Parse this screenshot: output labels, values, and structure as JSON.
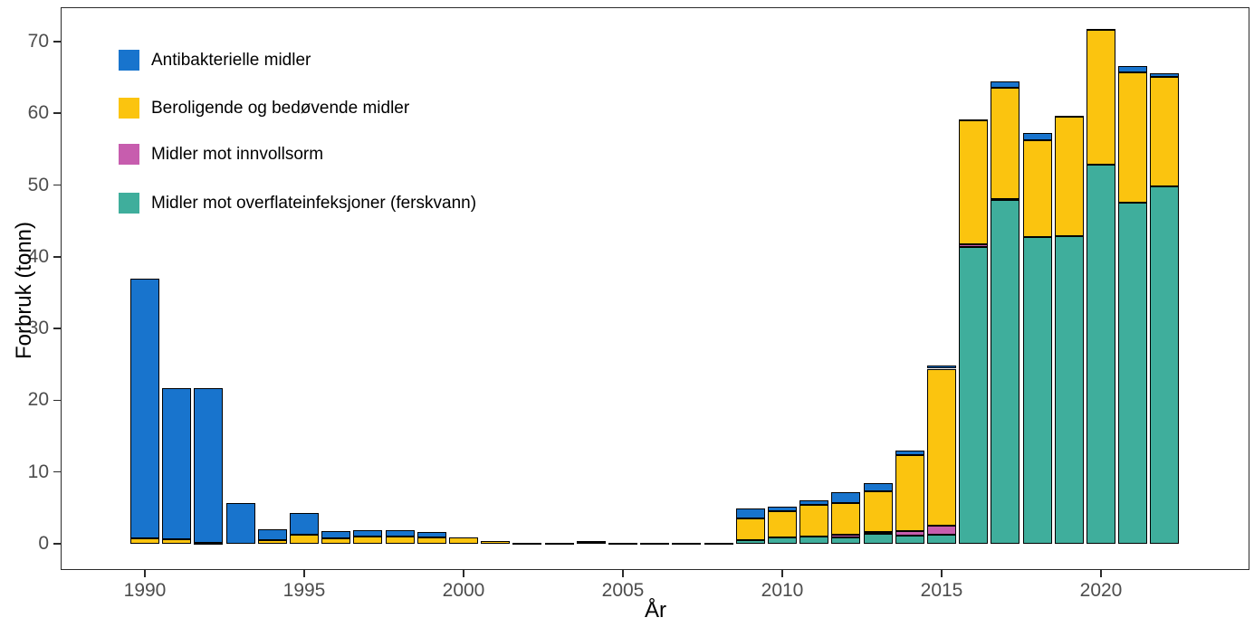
{
  "chart_data": {
    "type": "bar",
    "stacked": true,
    "title": "",
    "xlabel": "År",
    "ylabel": "Forbruk (tonn)",
    "years": [
      1990,
      1991,
      1992,
      1993,
      1994,
      1995,
      1996,
      1997,
      1998,
      1999,
      2000,
      2001,
      2002,
      2003,
      2004,
      2005,
      2006,
      2007,
      2008,
      2009,
      2010,
      2011,
      2012,
      2013,
      2014,
      2015,
      2016,
      2017,
      2018,
      2019,
      2020,
      2021,
      2022
    ],
    "series": [
      {
        "name": "Antibakterielle midler",
        "color": "#1874CD",
        "values": [
          36.2,
          21.1,
          21.6,
          5.7,
          1.5,
          3.0,
          1.0,
          0.85,
          0.85,
          0.75,
          0,
          0,
          0,
          0,
          0,
          0,
          0,
          0,
          0,
          1.4,
          0.7,
          0.7,
          1.5,
          1.1,
          0.6,
          0.5,
          0.2,
          0.8,
          0.9,
          0.2,
          0.2,
          0.9,
          0.5
        ]
      },
      {
        "name": "Beroligende og bedøvende midler",
        "color": "#FBC40F",
        "values": [
          0.8,
          0.6,
          0.1,
          0,
          0.55,
          1.3,
          0.75,
          1.0,
          1.05,
          0.9,
          0.85,
          0.35,
          0.1,
          0.15,
          0.1,
          0.15,
          0.1,
          0.1,
          0.15,
          3.0,
          3.6,
          4.4,
          4.5,
          5.7,
          10.6,
          21.9,
          17.2,
          15.5,
          13.6,
          16.6,
          18.8,
          18.1,
          15.3
        ]
      },
      {
        "name": "Midler mot innvollsorm",
        "color": "#C75DAE",
        "values": [
          0,
          0,
          0,
          0,
          0,
          0,
          0,
          0,
          0,
          0,
          0,
          0,
          0,
          0,
          0.25,
          0,
          0,
          0,
          0,
          0,
          0,
          0,
          0.3,
          0.2,
          0.7,
          1.2,
          0.4,
          0.1,
          0,
          0,
          0,
          0,
          0
        ]
      },
      {
        "name": "Midler mot overflateinfeksjoner (ferskvann)",
        "color": "#3FAE9C",
        "values": [
          0,
          0,
          0,
          0,
          0,
          0,
          0,
          0,
          0,
          0,
          0,
          0,
          0,
          0,
          0,
          0,
          0,
          0,
          0,
          0.5,
          0.9,
          1.0,
          0.9,
          1.4,
          1.1,
          1.3,
          41.4,
          48.0,
          42.7,
          42.9,
          52.8,
          47.6,
          49.8
        ]
      }
    ],
    "stack_order_bottom_to_top": [
      3,
      2,
      1,
      0
    ],
    "y_ticks": [
      "0",
      "10",
      "20",
      "30",
      "40",
      "50",
      "60",
      "70"
    ],
    "y_tick_values": [
      0,
      10,
      20,
      30,
      40,
      50,
      60,
      70
    ],
    "x_ticks": [
      "1990",
      "1995",
      "2000",
      "2005",
      "2010",
      "2015",
      "2020"
    ],
    "x_tick_values": [
      1990,
      1995,
      2000,
      2005,
      2010,
      2015,
      2020
    ],
    "ylim": [
      0,
      75
    ],
    "grid": false,
    "legend_position": "inside-top-left",
    "background_color": "#FFFFFF",
    "panel_border_color": "#2B2B2B",
    "bar_outline_color": "#000000",
    "tick_label_color": "#4D4D4D",
    "axis_title_color": "#000000"
  }
}
